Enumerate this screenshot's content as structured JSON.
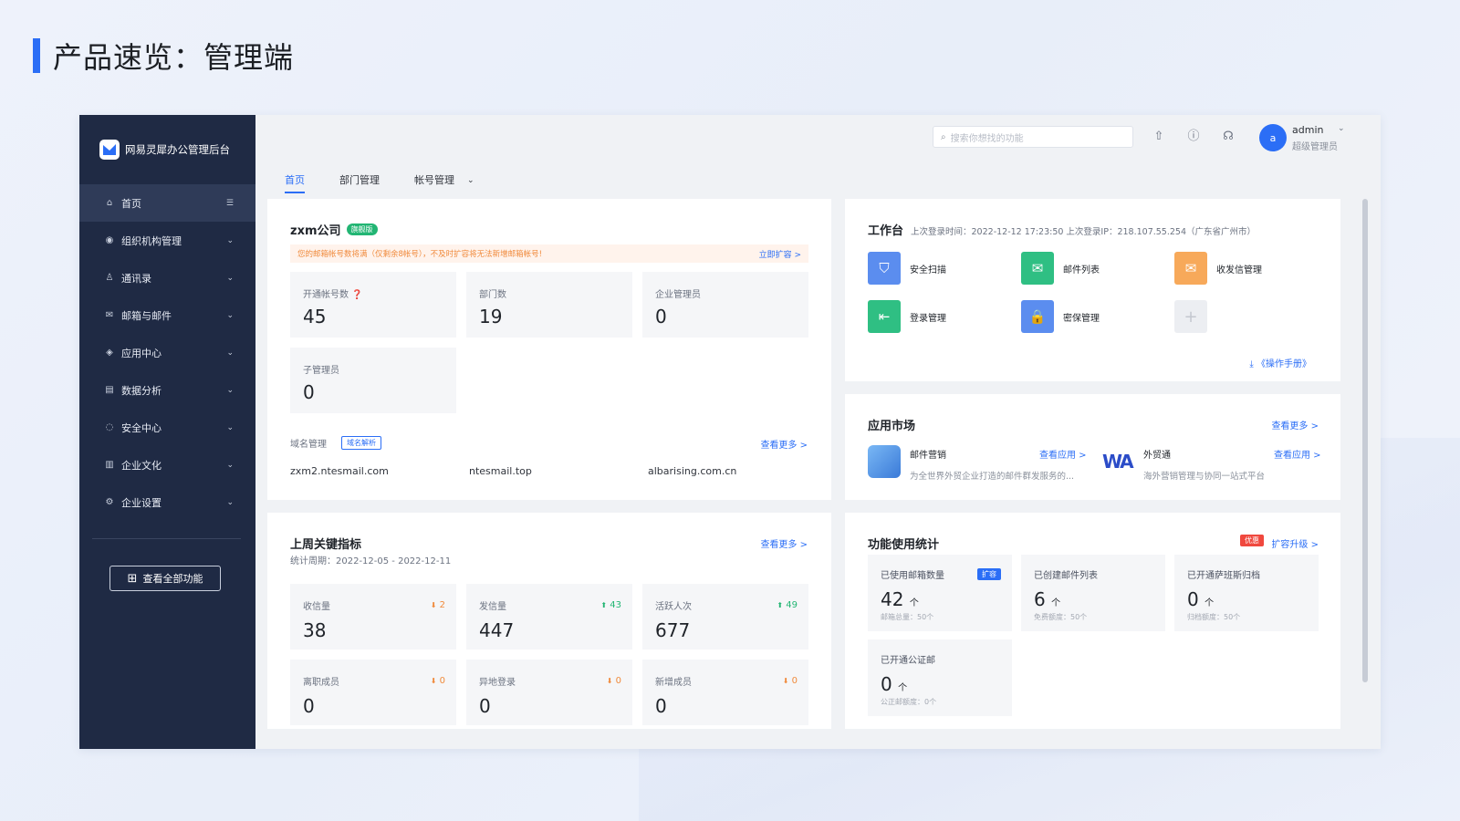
{
  "slide": {
    "title": "产品速览：管理端"
  },
  "app": {
    "name": "网易灵犀办公管理后台"
  },
  "sidebar": {
    "items": [
      {
        "label": "首页",
        "icon": "home-icon",
        "glyph": "⌂",
        "trail": "☰"
      },
      {
        "label": "组织机构管理",
        "icon": "org-icon",
        "glyph": "◉",
        "trail": "⌄"
      },
      {
        "label": "通讯录",
        "icon": "contacts-icon",
        "glyph": "♙",
        "trail": "⌄"
      },
      {
        "label": "邮箱与邮件",
        "icon": "mail-icon",
        "glyph": "✉",
        "trail": "⌄"
      },
      {
        "label": "应用中心",
        "icon": "app-center-icon",
        "glyph": "◈",
        "trail": "⌄"
      },
      {
        "label": "数据分析",
        "icon": "data-icon",
        "glyph": "▤",
        "trail": "⌄"
      },
      {
        "label": "安全中心",
        "icon": "security-icon",
        "glyph": "◌",
        "trail": "⌄"
      },
      {
        "label": "企业文化",
        "icon": "culture-icon",
        "glyph": "▥",
        "trail": "⌄"
      },
      {
        "label": "企业设置",
        "icon": "settings-icon",
        "glyph": "⚙",
        "trail": "⌄"
      }
    ],
    "all_features": "查看全部功能"
  },
  "header": {
    "search_placeholder": "搜索你想找的功能",
    "avatar_letter": "a",
    "user": "admin",
    "role": "超级管理员"
  },
  "tabs": [
    "首页",
    "部门管理",
    "帐号管理"
  ],
  "company": {
    "name": "zxm公司",
    "edition": "旗舰版",
    "warning": "您的邮箱帐号数将满（仅剩余8帐号），不及时扩容将无法新增邮箱帐号!",
    "warning_link": "立即扩容 >",
    "stats": [
      {
        "label": "开通帐号数",
        "value": "45"
      },
      {
        "label": "部门数",
        "value": "19"
      },
      {
        "label": "企业管理员",
        "value": "0"
      },
      {
        "label": "子管理员",
        "value": "0"
      }
    ],
    "domain_label": "域名管理",
    "domain_badge": "域名解析",
    "more": "查看更多 >",
    "domains": [
      "zxm2.ntesmail.com",
      "ntesmail.top",
      "albarising.com.cn"
    ]
  },
  "workbench": {
    "title": "工作台",
    "last_login": "上次登录时间：2022-12-12 17:23:50 上次登录IP：218.107.55.254（广东省广州市）",
    "items": [
      {
        "label": "安全扫描",
        "color": "#5b8def"
      },
      {
        "label": "邮件列表",
        "color": "#2fbf83"
      },
      {
        "label": "收发信管理",
        "color": "#f7a95a"
      },
      {
        "label": "登录管理",
        "color": "#2fbf83"
      },
      {
        "label": "密保管理",
        "color": "#5b8def"
      }
    ],
    "manual": "《操作手册》"
  },
  "market": {
    "title": "应用市场",
    "more": "查看更多 >",
    "apps": [
      {
        "name": "邮件营销",
        "desc": "为全世界外贸企业打造的邮件群发服务的...",
        "action": "查看应用 >"
      },
      {
        "name": "外贸通",
        "desc": "海外营销管理与协同一站式平台",
        "action": "查看应用 >"
      }
    ]
  },
  "kpi": {
    "title": "上周关键指标",
    "period": "统计周期：2022-12-05 - 2022-12-11",
    "more": "查看更多 >",
    "items": [
      {
        "label": "收信量",
        "value": "38",
        "delta": "2",
        "dir": "down"
      },
      {
        "label": "发信量",
        "value": "447",
        "delta": "43",
        "dir": "up"
      },
      {
        "label": "活跃人次",
        "value": "677",
        "delta": "49",
        "dir": "up"
      },
      {
        "label": "离职成员",
        "value": "0",
        "delta": "0",
        "dir": "down"
      },
      {
        "label": "异地登录",
        "value": "0",
        "delta": "0",
        "dir": "down"
      },
      {
        "label": "新增成员",
        "value": "0",
        "delta": "0",
        "dir": "down"
      }
    ]
  },
  "usage": {
    "title": "功能使用统计",
    "promo": "优惠",
    "upgrade": "扩容升级 >",
    "expand": "扩容",
    "items": [
      {
        "label": "已使用邮箱数量",
        "value": "42",
        "unit": "个",
        "quota": "邮箱总量：50个"
      },
      {
        "label": "已创建邮件列表",
        "value": "6",
        "unit": "个",
        "quota": "免费额度：50个"
      },
      {
        "label": "已开通萨班斯归档",
        "value": "0",
        "unit": "个",
        "quota": "归档额度：50个"
      },
      {
        "label": "已开通公证邮",
        "value": "0",
        "unit": "个",
        "quota": "公正邮额度：0个"
      }
    ]
  }
}
